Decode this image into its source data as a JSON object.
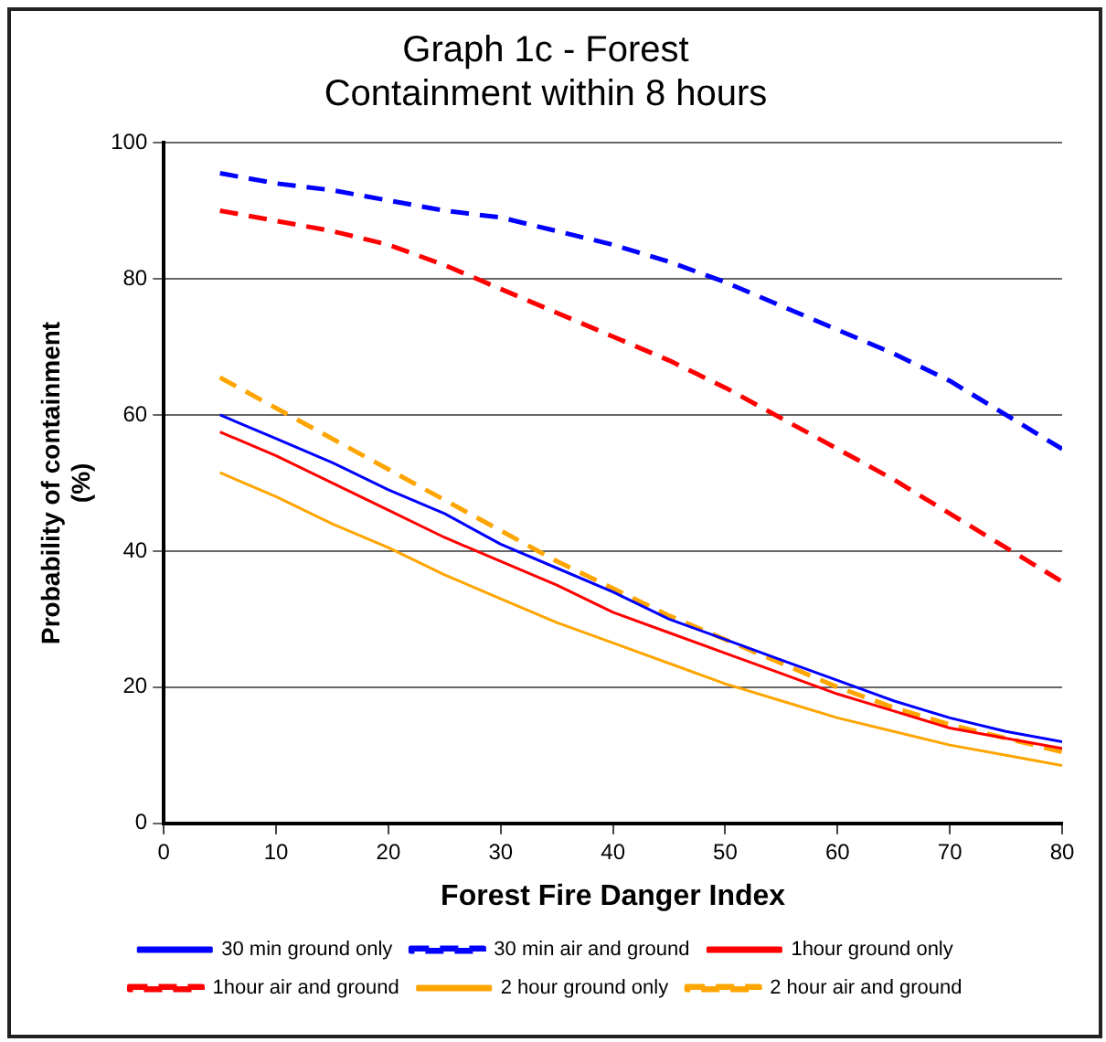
{
  "chart_data": {
    "type": "line",
    "title": [
      "Graph 1c - Forest",
      "Containment within 8 hours"
    ],
    "xlabel": "Forest Fire Danger Index",
    "ylabel": [
      "Probability of containment",
      "(%)"
    ],
    "x": [
      5,
      10,
      15,
      20,
      25,
      30,
      35,
      40,
      45,
      50,
      55,
      60,
      65,
      70,
      75,
      80
    ],
    "xlim": [
      0,
      80
    ],
    "xticks": [
      0,
      10,
      20,
      30,
      40,
      50,
      60,
      70,
      80
    ],
    "ylim": [
      0,
      100
    ],
    "yticks": [
      0,
      20,
      40,
      60,
      80,
      100
    ],
    "grid": "y",
    "legend": "bottom",
    "marker": "none",
    "series": [
      {
        "name": "30 min ground only",
        "color": "#0000ff",
        "line_style": "solid",
        "values": [
          60,
          56.5,
          53,
          49,
          45.5,
          41,
          37.5,
          34,
          30,
          27,
          24,
          21,
          18,
          15.5,
          13.5,
          12
        ]
      },
      {
        "name": "30 min air and ground",
        "color": "#0000ff",
        "line_style": "dashed",
        "values": [
          95.5,
          94,
          93,
          91.5,
          90,
          89,
          87,
          85,
          82.5,
          79.5,
          76,
          72.5,
          69,
          65,
          60,
          55
        ]
      },
      {
        "name": "1hour ground only",
        "color": "#ff0000",
        "line_style": "solid",
        "values": [
          57.5,
          54,
          50,
          46,
          42,
          38.5,
          35,
          31,
          28,
          25,
          22,
          19,
          16.5,
          14,
          12.5,
          11
        ]
      },
      {
        "name": "1hour air and ground",
        "color": "#ff0000",
        "line_style": "dashed",
        "values": [
          90,
          88.5,
          87,
          85,
          82,
          78.5,
          75,
          71.5,
          68,
          64,
          59.5,
          55,
          50.5,
          45.5,
          40.5,
          35.5
        ]
      },
      {
        "name": "2 hour ground only",
        "color": "#ffa500",
        "line_style": "solid",
        "values": [
          51.5,
          48,
          44,
          40.5,
          36.5,
          33,
          29.5,
          26.5,
          23.5,
          20.5,
          18,
          15.5,
          13.5,
          11.5,
          10,
          8.5
        ]
      },
      {
        "name": "2 hour air and ground",
        "color": "#ffa500",
        "line_style": "dashed",
        "values": [
          65.5,
          61,
          56.5,
          52,
          47.5,
          43,
          38.5,
          34.5,
          30.5,
          27,
          23.5,
          20,
          17,
          14.5,
          12.5,
          10.5
        ]
      }
    ]
  }
}
